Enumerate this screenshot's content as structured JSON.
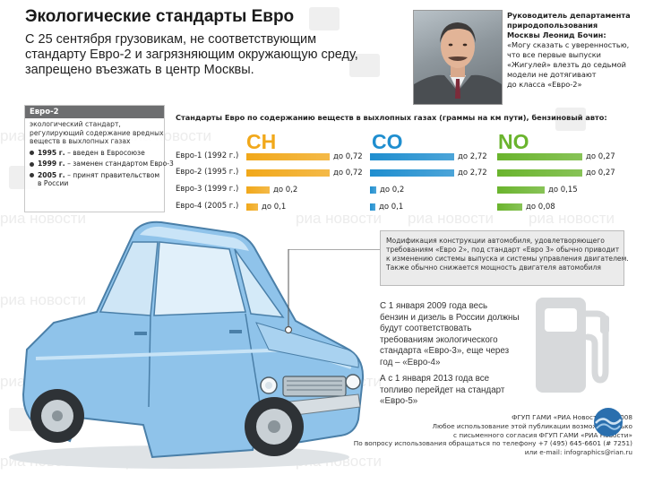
{
  "title": "Экологические стандарты Евро",
  "lead": [
    "С 25 сентября грузовикам, не соответствующим",
    "стандарту Евро-2 и загрязняющим окружающую среду,",
    "запрещено въезжать в центр Москвы."
  ],
  "quote": {
    "head": [
      "Руководитель департамента",
      "природопользования",
      "Москвы Леонид Бочин:"
    ],
    "body": [
      "«Могу сказать с уверенностью,",
      "что все первые выпуски",
      "«Жигулей» влезть до седьмой",
      "модели не дотягивают",
      "до класса «Евро-2»"
    ]
  },
  "euro2_box": {
    "heading": "Евро-2",
    "description": [
      "экологический стандарт,",
      "регулирующий содержание вредных",
      "веществ в выхлопных газах"
    ],
    "items": [
      {
        "year": "1995 г.",
        "text": [
          "– введен в Евросоюзе"
        ]
      },
      {
        "year": "1999 г.",
        "text": [
          "– заменен стандартом Евро-3"
        ]
      },
      {
        "year": "2005 г.",
        "text": [
          "– принят правительством",
          "в России"
        ]
      }
    ]
  },
  "chart_data": {
    "type": "bar",
    "title": "Стандарты Евро по содержанию веществ в выхлопных газах (граммы на км пути), бензиновый авто:",
    "categories": [
      "Евро-1 (1992 г.)",
      "Евро-2 (1995 г.)",
      "Евро-3 (1999 г.)",
      "Евро-4 (2005 г.)"
    ],
    "series": [
      {
        "name": "CH",
        "color": "#f1a81a",
        "values": [
          0.72,
          0.72,
          0.2,
          0.1
        ],
        "labels": [
          "до 0,72",
          "до 0,72",
          "до 0,2",
          "до 0,1"
        ]
      },
      {
        "name": "CO",
        "color": "#1f8ecf",
        "values": [
          2.72,
          2.72,
          0.2,
          0.1
        ],
        "labels": [
          "до 2,72",
          "до 2,72",
          "до 0,2",
          "до 0,1"
        ]
      },
      {
        "name": "NO",
        "color": "#6ab42d",
        "values": [
          0.27,
          0.27,
          0.15,
          0.08
        ],
        "labels": [
          "до 0,27",
          "до 0,27",
          "до 0,15",
          "до 0,08"
        ]
      }
    ]
  },
  "modification_box": [
    "Модификация конструкции автомобиля, удовлетворяющего",
    "требованиям «Евро 2», под стандарт «Евро 3» обычно приводит",
    "к изменению системы выпуска и системы управления двигателем.",
    "Также обычно снижается мощность двигателя автомобиля"
  ],
  "info": {
    "p1": [
      "С 1 января 2009 года весь",
      "бензин и дизель в России должны",
      "будут соответствовать",
      "требованиям экологического",
      "стандарта «Евро-3», еще через",
      "год – «Евро-4»"
    ],
    "p2": [
      "А с 1 января 2013 года все",
      "топливо перейдет на стандарт",
      "«Евро-5»"
    ]
  },
  "footer": [
    "ФГУП ГАМИ «РИА Новости» © 2008",
    "Любое использование этой публикации возможно только",
    "с письменного согласия ФГУП ГАМИ «РИА Новости»",
    "По вопросу использования обращаться по телефону +7 (495) 645-6601 (# 7251)",
    "или e-mail: infographics@rian.ru"
  ],
  "watermark_text": "риа новости",
  "colors": {
    "ch": "#f1a81a",
    "co": "#1f8ecf",
    "no": "#6ab42d",
    "car_body": "#8fc3ea",
    "box_header": "#6d6e70"
  }
}
